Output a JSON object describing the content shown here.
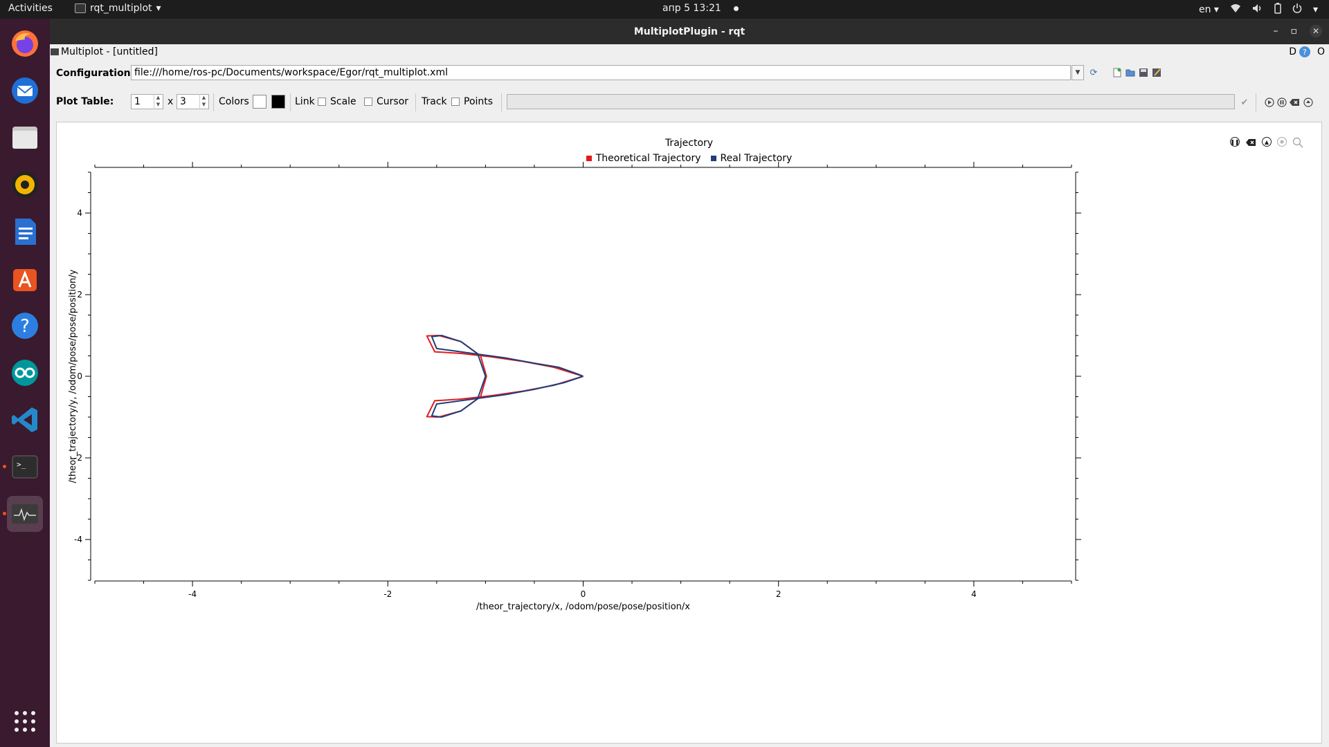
{
  "topbar": {
    "activities": "Activities",
    "app_name": "rqt_multiplot",
    "clock": "апр 5  13:21",
    "lang": "en"
  },
  "window": {
    "title": "MultiplotPlugin - rqt"
  },
  "dockwidget": {
    "title": "Multiplot - [untitled]",
    "badge_d": "D",
    "badge_help": "?",
    "badge_o": "O"
  },
  "config": {
    "label": "Configuration:",
    "value": "file:///home/ros-pc/Documents/workspace/Egor/rqt_multiplot.xml"
  },
  "plot_table": {
    "label": "Plot Table:",
    "rows": "1",
    "x": "x",
    "cols": "3",
    "colors_label": "Colors",
    "background_color": "#ffffff",
    "foreground_color": "#000000",
    "link_label": "Link",
    "scale_label": "Scale",
    "cursor_label": "Cursor",
    "track_label": "Track",
    "points_label": "Points"
  },
  "chart_data": {
    "type": "line",
    "title": "Trajectory",
    "xlabel": "/theor_trajectory/x, /odom/pose/pose/position/x",
    "ylabel": "/theor_trajectory/y, /odom/pose/pose/position/y",
    "xlim": [
      -5,
      5
    ],
    "ylim": [
      -5,
      5
    ],
    "xticks": [
      -4,
      -2,
      0,
      2,
      4
    ],
    "yticks": [
      -4,
      -2,
      0,
      2,
      4
    ],
    "grid": false,
    "legend": "top-center",
    "series": [
      {
        "name": "Theoretical Trajectory",
        "color": "#e31a1c",
        "x": [
          0,
          -0.3,
          -0.63,
          -0.95,
          -1.25,
          -1.52,
          -1.6,
          -1.48,
          -1.25,
          -1.05,
          -0.99,
          -1.05,
          -1.25,
          -1.48,
          -1.6,
          -1.52,
          -1.25,
          -0.95,
          -0.63,
          -0.3,
          0
        ],
        "y": [
          0,
          -0.22,
          -0.37,
          -0.48,
          -0.56,
          -0.6,
          -0.99,
          -1.0,
          -0.85,
          -0.5,
          0,
          0.5,
          0.85,
          1.0,
          0.99,
          0.6,
          0.56,
          0.48,
          0.37,
          0.22,
          0
        ]
      },
      {
        "name": "Real Trajectory",
        "color": "#1f3e7a",
        "x": [
          0,
          -0.2,
          -0.5,
          -0.8,
          -1.1,
          -1.35,
          -1.5,
          -1.55,
          -1.45,
          -1.25,
          -1.08,
          -1.0,
          -1.08,
          -1.25,
          -1.45,
          -1.55,
          -1.5,
          -1.35,
          -1.1,
          -0.8,
          -0.5,
          -0.25,
          -0.05,
          0
        ],
        "y": [
          0,
          -0.16,
          -0.32,
          -0.45,
          -0.55,
          -0.63,
          -0.68,
          -0.97,
          -1.0,
          -0.85,
          -0.55,
          0,
          0.55,
          0.85,
          1.0,
          0.97,
          0.68,
          0.63,
          0.55,
          0.45,
          0.32,
          0.22,
          0.05,
          0
        ]
      }
    ]
  }
}
